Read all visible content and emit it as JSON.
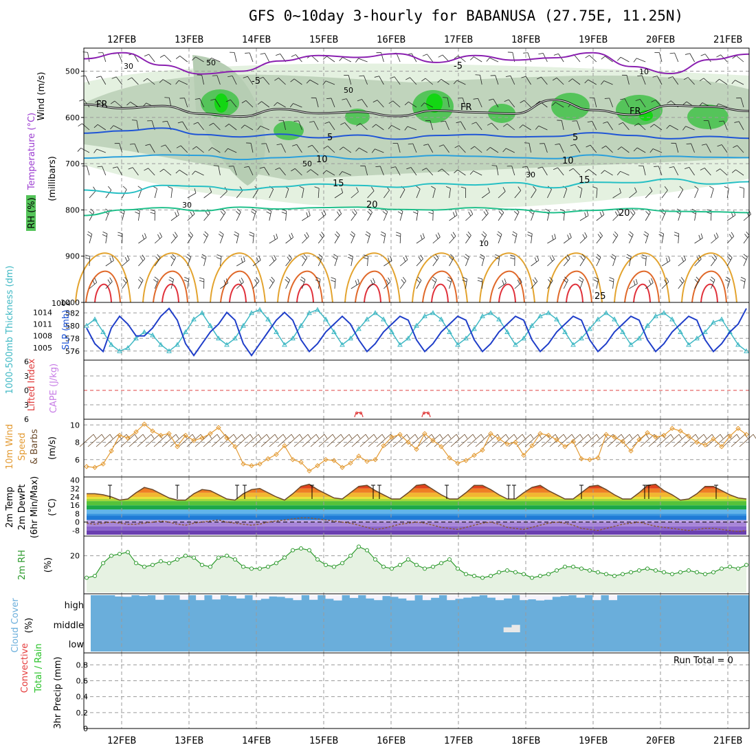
{
  "title": "GFS 0~10day 3-hourly for BABANUSA (27.75E, 11.25N)",
  "date_labels": [
    "12FEB",
    "13FEB",
    "14FEB",
    "15FEB",
    "16FEB",
    "17FEB",
    "18FEB",
    "19FEB",
    "20FEB",
    "21FEB"
  ],
  "run_total_label": "Run Total = 0",
  "colors": {
    "grid": "#9a9a9a",
    "rh_light": "#e4f1e0",
    "rh_mid": "#b6cdb3",
    "rh_green": "#55c45a",
    "rh_bright": "#13d613",
    "slp": "#1f3ec9",
    "thickness": "#3fb8c4",
    "cape": "#c77ce6",
    "lifted": "#e03a3a",
    "wind": "#e39a32",
    "temp_line": "#6b4a2a",
    "dewpt": "#8a5a3a",
    "rh2m": "#2d9a2d",
    "cloud": "#6aaedb",
    "precip_total": "#27c227",
    "precip_conv": "#e53b3b"
  },
  "chart_data": [
    {
      "panel": "upper_air",
      "type": "heatmap",
      "ylabel_parts": [
        "Wind (m/s)",
        "Temperature (°C)",
        "(millibars)",
        "RH (%)"
      ],
      "yticks": [
        500,
        600,
        700,
        800,
        900,
        1000
      ],
      "ylim": [
        1000,
        450
      ],
      "isotherms": [
        {
          "label": "-5",
          "levels": [
            473,
            460,
            487,
            506,
            500,
            478,
            466,
            470,
            462,
            481,
            466,
            476,
            471,
            460,
            490,
            505,
            475,
            463
          ]
        },
        {
          "label": "FR",
          "levels": [
            572,
            580,
            575,
            592,
            598,
            582,
            591,
            588,
            597,
            585,
            589,
            592,
            562,
            584,
            594,
            574,
            577,
            586
          ]
        },
        {
          "label": "5",
          "levels": [
            634,
            629,
            623,
            637,
            642,
            636,
            644,
            638,
            647,
            639,
            637,
            642,
            641,
            633,
            639,
            646,
            641,
            645
          ]
        },
        {
          "label": "10",
          "levels": [
            688,
            685,
            681,
            682,
            691,
            687,
            683,
            690,
            686,
            682,
            684,
            687,
            689,
            681,
            688,
            684,
            686,
            687
          ]
        },
        {
          "label": "15",
          "levels": [
            757,
            764,
            747,
            749,
            757,
            750,
            744,
            747,
            751,
            743,
            746,
            741,
            752,
            740,
            741,
            733,
            744,
            739
          ]
        },
        {
          "label": "20",
          "levels": [
            812,
            800,
            795,
            802,
            794,
            798,
            795,
            794,
            799,
            800,
            795,
            799,
            806,
            801,
            797,
            803,
            804,
            806
          ]
        }
      ],
      "isotherm_labels_shown": [
        "-5",
        "-5",
        "FR",
        "FR",
        "FR",
        "5",
        "5",
        "10",
        "10",
        "15",
        "15",
        "20",
        "20",
        "25"
      ],
      "rh_labels_shown": [
        "30",
        "50",
        "50",
        "30",
        "50",
        "10",
        "30",
        "10"
      ]
    },
    {
      "panel": "slp_thickness",
      "type": "line",
      "ylabel_left": "1000-500mb Thickness (dm)",
      "ylabel_right": "SLP (mb)",
      "thickness_ticks": [
        576,
        578,
        580,
        582
      ],
      "slp_ticks": [
        1005,
        1008,
        1011,
        1014
      ],
      "series": [
        {
          "name": "SLP",
          "unit": "mb",
          "values": [
            1010,
            1006,
            1004,
            1010,
            1013,
            1011,
            1008,
            1008,
            1010,
            1013,
            1015,
            1012,
            1006,
            1003,
            1006,
            1009,
            1011,
            1014,
            1012,
            1006,
            1003,
            1006,
            1009,
            1012,
            1014,
            1012,
            1007,
            1004,
            1006,
            1009,
            1011,
            1013,
            1011,
            1007,
            1004,
            1006,
            1009,
            1011,
            1013,
            1012,
            1007,
            1004,
            1006,
            1009,
            1011,
            1013,
            1012,
            1007,
            1004,
            1006,
            1009,
            1011,
            1013,
            1012,
            1007,
            1004,
            1006,
            1009,
            1011,
            1013,
            1012,
            1007,
            1004,
            1006,
            1009,
            1011,
            1013,
            1012,
            1007,
            1004,
            1006,
            1009,
            1011,
            1013,
            1012,
            1007,
            1004,
            1006,
            1009,
            1011,
            1015
          ]
        },
        {
          "name": "1000-500mb Thickness",
          "unit": "dm",
          "values": [
            580,
            581,
            579,
            577,
            576,
            576.5,
            578,
            579,
            578.5,
            577,
            576,
            577,
            579,
            581,
            582,
            580,
            578,
            577,
            578,
            580,
            582,
            582.5,
            581,
            579,
            577,
            578,
            580,
            582,
            582.5,
            581,
            579,
            577,
            578,
            579.5,
            581,
            582,
            581,
            579,
            577,
            578,
            580,
            581.5,
            582,
            581,
            579,
            577,
            578,
            579.5,
            581.5,
            582,
            581,
            579,
            577,
            578,
            580,
            581.5,
            582,
            581,
            579,
            577,
            578,
            579.5,
            581,
            582,
            581,
            579,
            577,
            578,
            580,
            581.5,
            582,
            581,
            579,
            577,
            578,
            579,
            580.5,
            581,
            579,
            577,
            576
          ]
        }
      ]
    },
    {
      "panel": "lifted_cape",
      "type": "line",
      "ylabel_left": "Lifted Index",
      "ylabel_right": "CAPE (J/kg)",
      "lifted_ticks": [
        "6",
        "3",
        "0",
        "3",
        "6"
      ],
      "series": [
        {
          "name": "CAPE bumps",
          "days": [
            "15FEB",
            "16FEB"
          ],
          "values": [
            6,
            6
          ]
        }
      ]
    },
    {
      "panel": "wind10m",
      "type": "line",
      "ylabel_parts": [
        "10m Wind",
        "Speed",
        "& Barbs",
        "(m/s)"
      ],
      "yticks": [
        6,
        8,
        10
      ],
      "ylim": [
        4,
        10.5
      ],
      "series": [
        {
          "name": "10m Wind Speed",
          "unit": "m/s",
          "values": [
            5.2,
            5.1,
            5.5,
            7.0,
            8.8,
            8.5,
            9.2,
            10.1,
            9.3,
            8.8,
            9.0,
            7.5,
            8.8,
            8.2,
            8.5,
            9.0,
            9.7,
            8.5,
            7.5,
            5.5,
            5.3,
            5.5,
            6.1,
            6.6,
            7.6,
            6.0,
            5.7,
            4.7,
            5.3,
            6.0,
            5.9,
            5.1,
            5.6,
            6.4,
            5.8,
            6.0,
            7.6,
            8.6,
            8.9,
            8.0,
            7.2,
            9.0,
            8.2,
            7.5,
            6.2,
            5.6,
            5.9,
            6.5,
            7.1,
            9.0,
            8.4,
            7.8,
            8.0,
            6.5,
            7.6,
            9.0,
            8.8,
            8.3,
            7.5,
            8.1,
            6.1,
            6.0,
            6.2,
            8.9,
            8.6,
            8.1,
            7.0,
            8.3,
            9.1,
            8.6,
            8.8,
            9.6,
            9.3,
            8.7,
            8.0,
            7.7,
            8.4,
            7.5,
            8.7,
            9.6,
            8.9
          ]
        }
      ]
    },
    {
      "panel": "temp2m",
      "type": "area",
      "ylabel_parts": [
        "2m Temp",
        "2m DewPt",
        "(6hr Min/Max)",
        "(°C)"
      ],
      "yticks": [
        -8,
        0,
        8,
        16,
        24,
        32,
        40
      ],
      "ylim": [
        -12,
        41
      ],
      "series": [
        {
          "name": "2m Temp",
          "unit": "°C",
          "values": [
            27,
            27,
            26,
            24,
            21,
            22,
            28,
            33,
            31,
            27,
            23,
            21,
            21,
            27,
            31,
            30,
            26,
            22,
            21,
            27,
            31,
            32,
            28,
            24,
            21,
            27,
            34,
            36,
            31,
            27,
            23,
            22,
            28,
            34,
            35,
            30,
            26,
            22,
            22,
            28,
            35,
            36,
            31,
            26,
            22,
            22,
            28,
            35,
            35,
            31,
            26,
            22,
            22,
            28,
            33,
            35,
            30,
            26,
            22,
            22,
            28,
            34,
            35,
            31,
            26,
            22,
            22,
            28,
            35,
            36,
            30,
            26,
            21,
            22,
            27,
            34,
            34,
            30,
            26,
            23,
            22
          ]
        },
        {
          "name": "2m DewPt",
          "unit": "°C",
          "values": [
            -1,
            -2,
            -1,
            0,
            -1,
            -2,
            -2,
            -1,
            0,
            1,
            0,
            -2,
            -3,
            -1,
            0,
            1,
            2,
            0,
            -1,
            -2,
            -3,
            -2,
            0,
            1,
            2,
            3,
            4,
            4,
            3,
            2,
            1,
            0,
            -1,
            -3,
            -5,
            -7,
            -6,
            -4,
            -2,
            -1,
            0,
            -1,
            -3,
            -5,
            -6,
            -7,
            -5,
            -3,
            -1,
            0,
            -2,
            -5,
            -6,
            -7,
            -5,
            -3,
            -1,
            0,
            -1,
            -3,
            -6,
            -7,
            -8,
            -6,
            -4,
            -2,
            -1,
            0,
            -2,
            -4,
            -5,
            -6,
            -7,
            -8,
            -7,
            -6,
            -6,
            -7,
            -8,
            -9,
            -8
          ]
        }
      ]
    },
    {
      "panel": "rh2m",
      "type": "area",
      "ylabel_parts": [
        "2m RH",
        "(%)"
      ],
      "yticks": [
        20
      ],
      "ylim": [
        0,
        30
      ],
      "series": [
        {
          "name": "2m RH",
          "unit": "%",
          "values": [
            8,
            9,
            16,
            20,
            21,
            22,
            16,
            14,
            15,
            17,
            16,
            18,
            20,
            19,
            15,
            14,
            19,
            20,
            18,
            14,
            13,
            13,
            14,
            16,
            19,
            23,
            24,
            23,
            18,
            15,
            14,
            16,
            20,
            25,
            23,
            18,
            14,
            13,
            15,
            18,
            15,
            13,
            14,
            16,
            18,
            13,
            10,
            9,
            8,
            9,
            11,
            12,
            11,
            10,
            8,
            9,
            10,
            12,
            14,
            14,
            13,
            12,
            11,
            10,
            9,
            10,
            11,
            12,
            13,
            12,
            11,
            10,
            11,
            12,
            11,
            10,
            11,
            13,
            14,
            13,
            15
          ]
        }
      ]
    },
    {
      "panel": "cloud",
      "type": "bar",
      "ylabel": "Cloud Cover (%)",
      "level_labels": [
        "high",
        "middle",
        "low"
      ],
      "series": [
        {
          "name": "high cloud",
          "unit": "%",
          "values": [
            100,
            100,
            100,
            92,
            90,
            100,
            95,
            100,
            72,
            100,
            100,
            72,
            100,
            70,
            100,
            74,
            100,
            95,
            80,
            100,
            70,
            78,
            92,
            90,
            82,
            70,
            100,
            72,
            100,
            78,
            68,
            100,
            83,
            100,
            80,
            70,
            95,
            90,
            80,
            68,
            100,
            70,
            84,
            100,
            70,
            78,
            85,
            92,
            100,
            85,
            70,
            80,
            100,
            70,
            75,
            68,
            72,
            90,
            95,
            100,
            85,
            100,
            70,
            100,
            70,
            100,
            100,
            100,
            100,
            100,
            100,
            100,
            100,
            100,
            100,
            100,
            100,
            100,
            100,
            100,
            100
          ]
        },
        {
          "name": "middle cloud",
          "unit": "%",
          "values": [
            100,
            100,
            100,
            100,
            100,
            100,
            100,
            100,
            100,
            100,
            100,
            100,
            100,
            100,
            100,
            100,
            100,
            100,
            100,
            100,
            100,
            100,
            100,
            100,
            100,
            100,
            100,
            100,
            100,
            100,
            100,
            100,
            100,
            100,
            100,
            100,
            100,
            100,
            100,
            100,
            100,
            100,
            100,
            100,
            100,
            100,
            100,
            100,
            100,
            100,
            100,
            70,
            55,
            100,
            100,
            100,
            100,
            100,
            100,
            100,
            100,
            100,
            100,
            100,
            100,
            100,
            100,
            100,
            100,
            100,
            100,
            100,
            100,
            100,
            100,
            100,
            100,
            100,
            100,
            100,
            100
          ]
        },
        {
          "name": "low cloud",
          "unit": "%",
          "values": [
            100,
            100,
            100,
            100,
            100,
            100,
            100,
            100,
            100,
            100,
            100,
            100,
            100,
            100,
            100,
            100,
            100,
            100,
            100,
            100,
            100,
            100,
            100,
            100,
            100,
            100,
            100,
            100,
            100,
            100,
            100,
            100,
            100,
            100,
            100,
            100,
            100,
            100,
            100,
            100,
            100,
            100,
            100,
            100,
            100,
            100,
            100,
            100,
            100,
            100,
            100,
            100,
            100,
            100,
            100,
            100,
            100,
            100,
            100,
            100,
            100,
            100,
            100,
            100,
            100,
            100,
            100,
            100,
            100,
            100,
            100,
            100,
            100,
            100,
            100,
            100,
            100,
            100,
            100,
            100,
            100
          ]
        }
      ]
    },
    {
      "panel": "precip",
      "type": "bar",
      "ylabel_parts": [
        "3hr Precip (mm)",
        "Total / Rain",
        "Convective"
      ],
      "yticks": [
        "0",
        "0.2",
        "0.4",
        "0.6",
        "0.8"
      ],
      "ylim": [
        0,
        1
      ],
      "series": [
        {
          "name": "3hr Precip Total",
          "unit": "mm",
          "values": [
            0,
            0,
            0,
            0,
            0,
            0,
            0,
            0,
            0,
            0
          ]
        },
        {
          "name": "Convective",
          "unit": "mm",
          "values": [
            0,
            0,
            0,
            0,
            0,
            0,
            0,
            0,
            0,
            0
          ]
        }
      ]
    }
  ]
}
